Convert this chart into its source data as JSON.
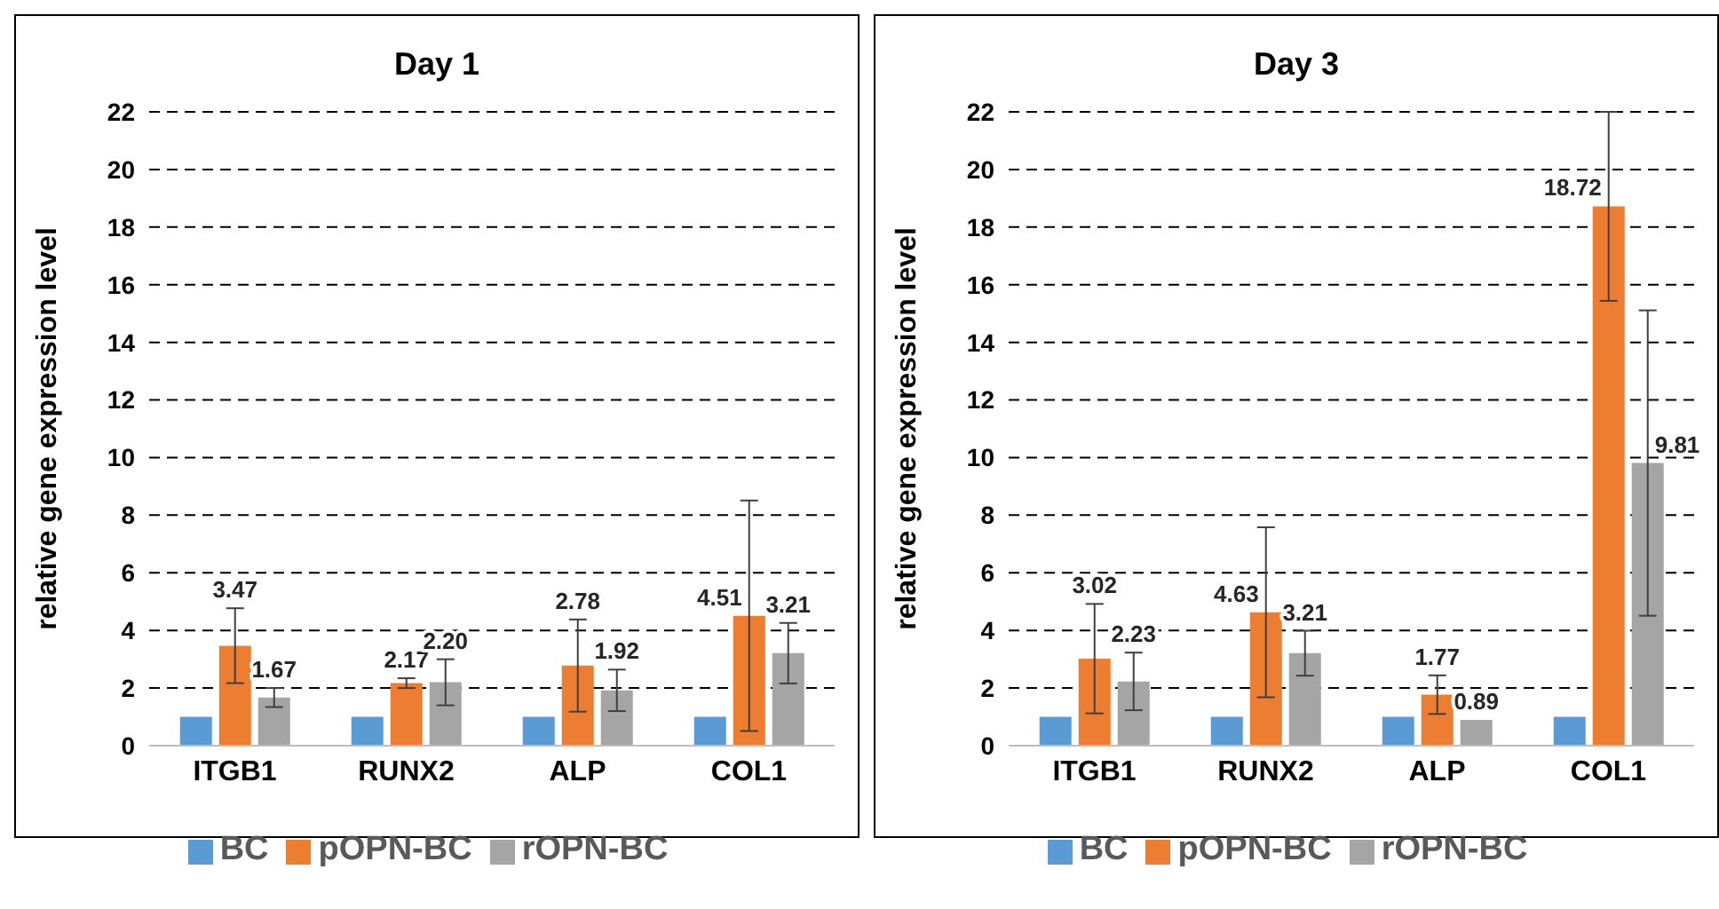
{
  "chart_data": [
    {
      "type": "bar",
      "title": "Day 1",
      "ylabel": "relative gene expression level",
      "categories": [
        "ITGB1",
        "RUNX2",
        "ALP",
        "COL1"
      ],
      "ylim": [
        0,
        22
      ],
      "yticks": [
        0,
        2,
        4,
        6,
        8,
        10,
        12,
        14,
        16,
        18,
        20,
        22
      ],
      "grid": "y",
      "legend": "bottom",
      "series": [
        {
          "name": "BC",
          "color": "#5b9bd5",
          "values": [
            1,
            1,
            1,
            1
          ]
        },
        {
          "name": "pOPN-BC",
          "color": "#ed7d31",
          "values": [
            3.47,
            2.17,
            2.78,
            4.51
          ],
          "errors": [
            1.3,
            0.17,
            1.6,
            4.0
          ],
          "value_labels": [
            "3.47",
            "2.17",
            "2.78",
            "4.51"
          ]
        },
        {
          "name": "rOPN-BC",
          "color": "#a5a5a5",
          "values": [
            1.67,
            2.2,
            1.92,
            3.21
          ],
          "errors": [
            0.33,
            0.8,
            0.72,
            1.05
          ],
          "value_labels": [
            "1.67",
            "2.20",
            "1.92",
            "3.21"
          ]
        }
      ]
    },
    {
      "type": "bar",
      "title": "Day 3",
      "ylabel": "relative gene expression level",
      "categories": [
        "ITGB1",
        "RUNX2",
        "ALP",
        "COL1"
      ],
      "ylim": [
        0,
        22
      ],
      "yticks": [
        0,
        2,
        4,
        6,
        8,
        10,
        12,
        14,
        16,
        18,
        20,
        22
      ],
      "grid": "y",
      "legend": "bottom",
      "series": [
        {
          "name": "BC",
          "color": "#5b9bd5",
          "values": [
            1,
            1,
            1,
            1
          ]
        },
        {
          "name": "pOPN-BC",
          "color": "#ed7d31",
          "values": [
            3.02,
            4.63,
            1.77,
            18.72
          ],
          "errors": [
            1.9,
            2.95,
            0.67,
            3.28
          ],
          "value_labels": [
            "3.02",
            "4.63",
            "1.77",
            "18.72"
          ]
        },
        {
          "name": "rOPN-BC",
          "color": "#a5a5a5",
          "values": [
            2.23,
            3.21,
            0.89,
            9.81
          ],
          "errors": [
            1.0,
            0.78,
            null,
            5.3
          ],
          "value_labels": [
            "2.23",
            "3.21",
            "0.89",
            "9.81"
          ]
        }
      ]
    }
  ]
}
